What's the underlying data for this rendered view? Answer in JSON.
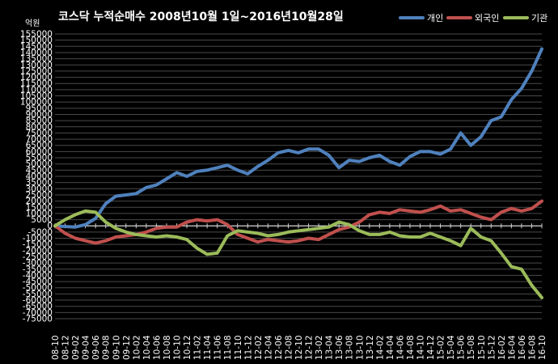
{
  "chart_data": {
    "type": "line",
    "title": "코스닥  누적순매수 2008년10월 1일~2016년10월28일",
    "ylabel": "억원",
    "xlabel": "",
    "ylim": [
      -75000,
      155000
    ],
    "ytick_step": 5000,
    "grid": true,
    "legend_position": "top-right",
    "x_tick_labels": [
      "08-10",
      "08-12",
      "09-02",
      "09-04",
      "09-06",
      "09-08",
      "09-10",
      "09-12",
      "10-02",
      "10-04",
      "10-06",
      "10-08",
      "10-10",
      "10-12",
      "11-02",
      "11-04",
      "11-06",
      "11-08",
      "11-10",
      "11-12",
      "12-02",
      "12-04",
      "12-06",
      "12-08",
      "12-10",
      "12-12",
      "13-02",
      "13-04",
      "13-06",
      "13-08",
      "13-10",
      "13-12",
      "14-02",
      "14-04",
      "14-06",
      "14-08",
      "14-10",
      "14-12",
      "15-02",
      "15-04",
      "15-06",
      "15-08",
      "15-10",
      "15-12",
      "16-02",
      "16-04",
      "16-06",
      "16-08",
      "16-10"
    ],
    "x_index": [
      0,
      1,
      2,
      3,
      4,
      5,
      6,
      7,
      8,
      9,
      10,
      11,
      12,
      13,
      14,
      15,
      16,
      17,
      18,
      19,
      20,
      21,
      22,
      23,
      24,
      25,
      26,
      27,
      28,
      29,
      30,
      31,
      32,
      33,
      34,
      35,
      36,
      37,
      38,
      39,
      40,
      41,
      42,
      43,
      44,
      45,
      46,
      47,
      48
    ],
    "series": [
      {
        "name": "개인",
        "color": "#4F81BD",
        "values": [
          0,
          -500,
          -1000,
          1000,
          6000,
          18000,
          24000,
          25000,
          26000,
          31000,
          33000,
          38000,
          43000,
          40000,
          44000,
          45000,
          47000,
          49000,
          45000,
          42000,
          48000,
          53000,
          59000,
          61000,
          59000,
          62000,
          62000,
          57000,
          47000,
          53000,
          52000,
          55000,
          57000,
          52000,
          49000,
          56000,
          60000,
          60000,
          58000,
          62000,
          75000,
          65000,
          72000,
          85000,
          88000,
          102000,
          111000,
          125000,
          143000
        ]
      },
      {
        "name": "외국인",
        "color": "#C0504D",
        "values": [
          0,
          -6000,
          -10000,
          -12000,
          -14000,
          -12000,
          -9000,
          -8000,
          -7000,
          -5000,
          -2000,
          -1000,
          -1000,
          3000,
          5000,
          4000,
          5000,
          1000,
          -7000,
          -10000,
          -13000,
          -11000,
          -12000,
          -13000,
          -12000,
          -10000,
          -11000,
          -7000,
          -3000,
          -1000,
          3000,
          9000,
          11000,
          10000,
          13000,
          12000,
          11000,
          13000,
          16000,
          12000,
          13000,
          10000,
          7000,
          5000,
          11000,
          14000,
          12000,
          14000,
          20000
        ]
      },
      {
        "name": "기관",
        "color": "#9BBB59",
        "values": [
          0,
          5000,
          9000,
          12000,
          11000,
          3000,
          -2000,
          -5000,
          -7000,
          -8000,
          -9000,
          -8000,
          -9000,
          -11000,
          -18000,
          -23000,
          -22000,
          -8000,
          -4000,
          -5000,
          -6000,
          -8000,
          -7000,
          -5000,
          -4000,
          -3000,
          -2000,
          -1000,
          3000,
          1000,
          -4000,
          -7000,
          -7000,
          -5000,
          -8000,
          -9000,
          -9000,
          -6000,
          -9000,
          -12000,
          -16000,
          -2000,
          -9000,
          -12000,
          -22000,
          -33000,
          -35000,
          -48000,
          -58000
        ]
      }
    ]
  }
}
